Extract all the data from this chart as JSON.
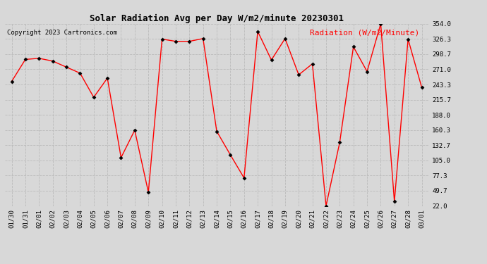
{
  "title": "Solar Radiation Avg per Day W/m2/minute 20230301",
  "copyright_text": "Copyright 2023 Cartronics.com",
  "legend_label": "Radiation (W/m2/Minute)",
  "dates": [
    "01/30",
    "01/31",
    "02/01",
    "02/02",
    "02/03",
    "02/04",
    "02/05",
    "02/06",
    "02/07",
    "02/08",
    "02/09",
    "02/10",
    "02/11",
    "02/12",
    "02/13",
    "02/14",
    "02/15",
    "02/16",
    "02/17",
    "02/18",
    "02/19",
    "02/20",
    "02/21",
    "02/22",
    "02/23",
    "02/24",
    "02/25",
    "02/26",
    "02/27",
    "02/28",
    "03/01"
  ],
  "values": [
    249.0,
    289.0,
    291.0,
    286.0,
    275.0,
    264.0,
    220.0,
    255.0,
    110.0,
    160.0,
    47.0,
    326.0,
    322.0,
    322.0,
    327.0,
    158.0,
    115.0,
    73.0,
    340.0,
    288.0,
    327.0,
    261.0,
    281.0,
    22.0,
    138.0,
    312.0,
    267.0,
    354.0,
    30.0,
    326.0,
    238.0
  ],
  "ylim": [
    22.0,
    354.0
  ],
  "yticks": [
    22.0,
    49.7,
    77.3,
    105.0,
    132.7,
    160.3,
    188.0,
    215.7,
    243.3,
    271.0,
    298.7,
    326.3,
    354.0
  ],
  "line_color": "red",
  "marker": "D",
  "marker_color": "black",
  "marker_size": 2.5,
  "line_width": 1.0,
  "grid_color": "#bbbbbb",
  "bg_color": "#d8d8d8",
  "title_fontsize": 9,
  "copyright_fontsize": 6.5,
  "legend_fontsize": 8,
  "tick_fontsize": 6.5
}
